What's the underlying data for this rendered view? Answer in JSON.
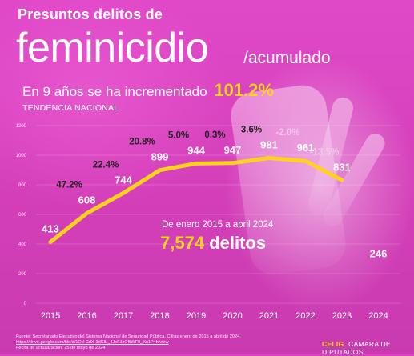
{
  "header": {
    "title_small": "Presuntos delitos de",
    "title_big": "feminicidio",
    "title_sub": "/acumulado",
    "headline_text": "En 9 años se ha incrementado",
    "headline_pct": "101.2%",
    "trend_label": "TENDENCIA NACIONAL"
  },
  "summary": {
    "period": "De enero 2015 a abril 2024",
    "total_number": "7,574",
    "total_unit": "delitos"
  },
  "footer": {
    "source": "Fuente: Secretariado Ejecutivo del Sistema Nacional de Seguridad Pública. Cifras enero de 2015 a abril de 2024.",
    "link": "https://drive.google.com/file/d/1Od-CdX-3dSIL_4JeFJzOBWF9_Xc1P4h/view",
    "updated": "Fecha de actualización: 25 de mayo de 2024"
  },
  "branding": {
    "celig": "CELIG",
    "camara": "CÁMARA DE DIPUTADOS"
  },
  "colors": {
    "background": "#d93fbf",
    "line": "#ffd21e",
    "accent": "#ffd21e",
    "negative_change": "#f3c6e8",
    "positive_change": "#222222"
  },
  "chart_data": {
    "type": "line",
    "title": "Presuntos delitos de feminicidio",
    "x": [
      "2015",
      "2016",
      "2017",
      "2018",
      "2019",
      "2020",
      "2021",
      "2022",
      "2023",
      "2024"
    ],
    "series": [
      {
        "values": [
          413,
          608,
          744,
          899,
          944,
          947,
          981,
          961,
          831,
          null
        ]
      }
    ],
    "standalone_points": [
      {
        "x": "2024",
        "value": 246,
        "label": "246"
      }
    ],
    "value_labels": [
      "413",
      "608",
      "744",
      "899",
      "944",
      "947",
      "981",
      "961",
      "831",
      "246"
    ],
    "yearly_change_labels": [
      "47.2%",
      "22.4%",
      "20.8%",
      "5.0%",
      "0.3%",
      "3.6%",
      "-2.0%",
      "-13.5%"
    ],
    "yearly_change_positions": [
      "2016",
      "2017",
      "2018",
      "2019",
      "2020",
      "2021",
      "2022",
      "2023"
    ],
    "y_ticks": [
      "0",
      "200",
      "400",
      "600",
      "800",
      "1000",
      "1200"
    ],
    "ylim": [
      0,
      1200
    ],
    "grid": true,
    "legend": "none"
  }
}
